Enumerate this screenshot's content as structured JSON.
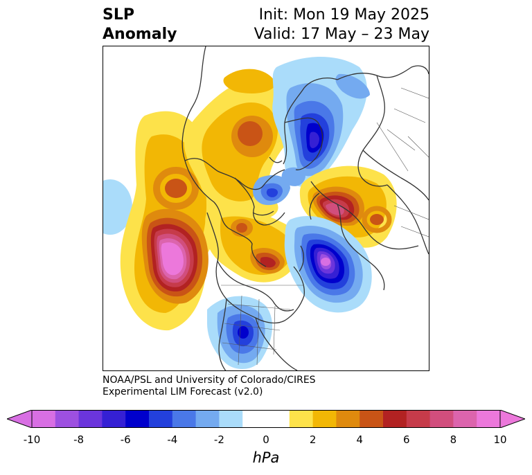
{
  "header": {
    "title_line1": "SLP",
    "title_line2": "Anomaly",
    "init_text": "Init: Mon 19 May 2025",
    "valid_text": "Valid: 17 May – 23 May"
  },
  "credit": {
    "line1": "NOAA/PSL and University of Colorado/CIRES",
    "line2": "Experimental LIM Forecast (v2.0)"
  },
  "colorbar": {
    "unit_label": "hPa",
    "tick_labels": [
      "-10",
      "-8",
      "-6",
      "-4",
      "-2",
      "0",
      "2",
      "4",
      "6",
      "8",
      "10"
    ],
    "colors": [
      "#d86fe3",
      "#9d50e0",
      "#6b35dc",
      "#3520d4",
      "#0000cc",
      "#2340dc",
      "#4a78e8",
      "#74aaf0",
      "#aadcfa",
      "#ffffff",
      "#ffffff",
      "#fde24a",
      "#f2b705",
      "#df8a0e",
      "#c95416",
      "#b22222",
      "#c63b4a",
      "#d14e7d",
      "#dc64ad",
      "#ec78db"
    ],
    "under_color": "#d86fe3",
    "over_color": "#ec78db"
  },
  "map": {
    "projection": "north-polar-stereographic",
    "anomalies": [
      {
        "region": "northeast-pacific",
        "sign": "positive",
        "peak_hpa": 10
      },
      {
        "region": "northern-europe",
        "sign": "positive",
        "peak_hpa": 8
      },
      {
        "region": "eastern-canada",
        "sign": "positive",
        "peak_hpa": 6
      },
      {
        "region": "western-europe",
        "sign": "positive",
        "peak_hpa": 4
      },
      {
        "region": "northwest-atlantic",
        "sign": "negative",
        "peak_hpa": -9
      },
      {
        "region": "barents-kara-seas",
        "sign": "negative",
        "peak_hpa": -6
      },
      {
        "region": "central-united-states",
        "sign": "negative",
        "peak_hpa": -5
      },
      {
        "region": "north-atlantic-greenland",
        "sign": "negative",
        "peak_hpa": -4
      }
    ]
  }
}
